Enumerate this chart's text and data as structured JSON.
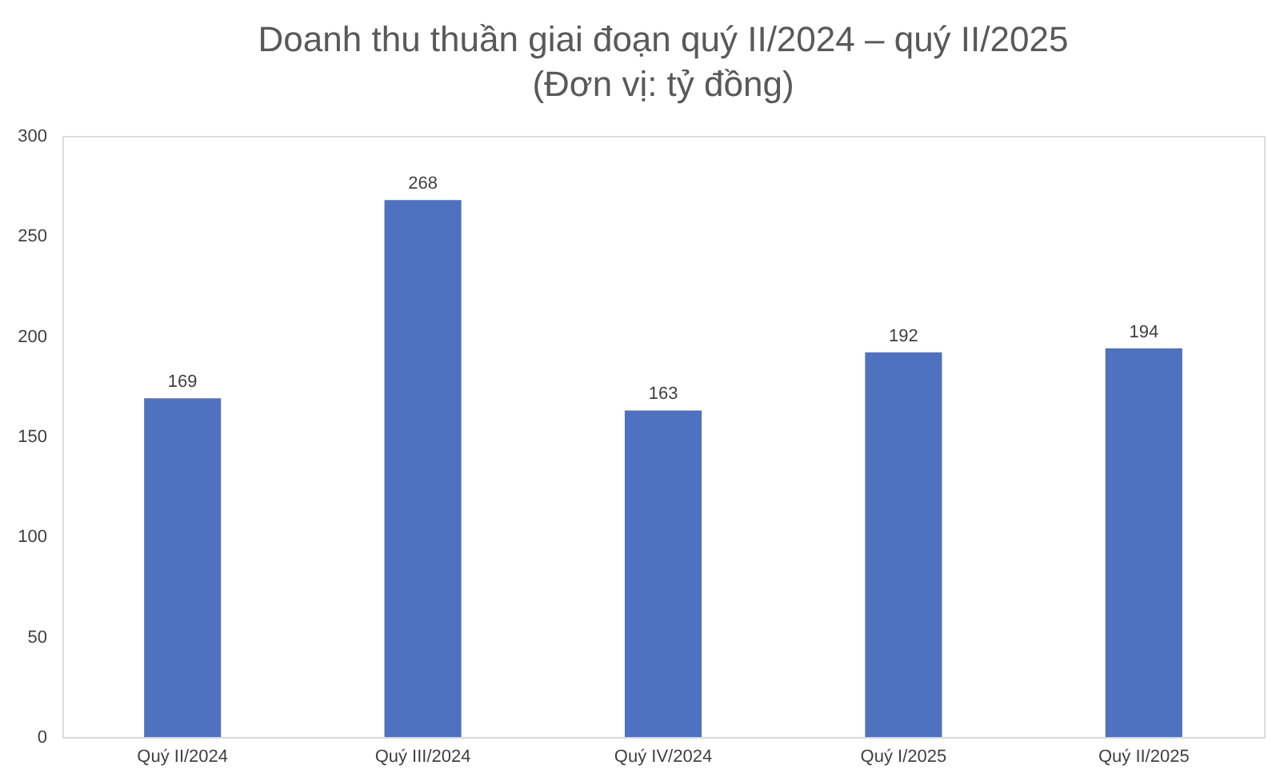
{
  "chart_data": {
    "type": "bar",
    "title": "Doanh thu thuần giai đoạn quý II/2024 – quý II/2025",
    "subtitle": "(Đơn vị: tỷ đồng)",
    "categories": [
      "Quý II/2024",
      "Quý III/2024",
      "Quý IV/2024",
      "Quý I/2025",
      "Quý II/2025"
    ],
    "values": [
      169,
      268,
      163,
      192,
      194
    ],
    "color": "#4f72c0",
    "ylim": [
      0,
      300
    ],
    "yticks": [
      0,
      50,
      100,
      150,
      200,
      250,
      300
    ],
    "grid": false,
    "data_labels": true
  }
}
